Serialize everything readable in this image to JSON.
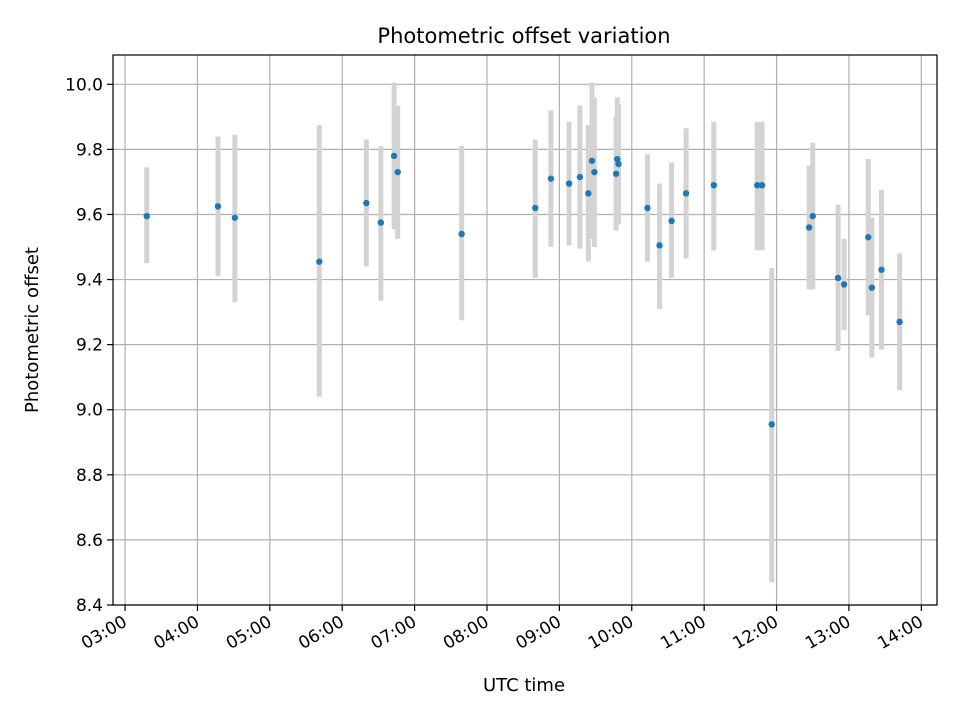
{
  "chart_data": {
    "type": "scatter",
    "title": "Photometric offset variation",
    "xlabel": "UTC time",
    "ylabel": "Photometric offset",
    "x_unit": "hour (UTC)",
    "xlim": [
      "02:50",
      "14:13"
    ],
    "ylim": [
      8.4,
      10.09
    ],
    "xticks": [
      "03:00",
      "04:00",
      "05:00",
      "06:00",
      "07:00",
      "08:00",
      "09:00",
      "10:00",
      "11:00",
      "12:00",
      "13:00",
      "14:00"
    ],
    "yticks": [
      "8.4",
      "8.6",
      "8.8",
      "9.0",
      "9.2",
      "9.4",
      "9.6",
      "9.8",
      "10.0"
    ],
    "grid": true,
    "colors": {
      "points": "#1f77b4",
      "errorbars": "#d3d3d3",
      "grid": "#b0b0b0"
    },
    "points": [
      {
        "time": "03:18",
        "y": 9.595,
        "ylow": 9.45,
        "yhigh": 9.745
      },
      {
        "time": "04:17",
        "y": 9.625,
        "ylow": 9.41,
        "yhigh": 9.84
      },
      {
        "time": "04:31",
        "y": 9.59,
        "ylow": 9.33,
        "yhigh": 9.845
      },
      {
        "time": "05:41",
        "y": 9.455,
        "ylow": 9.04,
        "yhigh": 9.875
      },
      {
        "time": "06:20",
        "y": 9.635,
        "ylow": 9.44,
        "yhigh": 9.83
      },
      {
        "time": "06:32",
        "y": 9.575,
        "ylow": 9.335,
        "yhigh": 9.81
      },
      {
        "time": "06:43",
        "y": 9.78,
        "ylow": 9.555,
        "yhigh": 10.005
      },
      {
        "time": "06:46",
        "y": 9.73,
        "ylow": 9.525,
        "yhigh": 9.935
      },
      {
        "time": "07:39",
        "y": 9.54,
        "ylow": 9.275,
        "yhigh": 9.81
      },
      {
        "time": "08:40",
        "y": 9.62,
        "ylow": 9.405,
        "yhigh": 9.83
      },
      {
        "time": "08:53",
        "y": 9.71,
        "ylow": 9.5,
        "yhigh": 9.92
      },
      {
        "time": "09:08",
        "y": 9.695,
        "ylow": 9.505,
        "yhigh": 9.885
      },
      {
        "time": "09:17",
        "y": 9.715,
        "ylow": 9.495,
        "yhigh": 9.935
      },
      {
        "time": "09:24",
        "y": 9.665,
        "ylow": 9.455,
        "yhigh": 9.875
      },
      {
        "time": "09:27",
        "y": 9.765,
        "ylow": 9.525,
        "yhigh": 10.005
      },
      {
        "time": "09:29",
        "y": 9.73,
        "ylow": 9.5,
        "yhigh": 9.96
      },
      {
        "time": "09:47",
        "y": 9.725,
        "ylow": 9.55,
        "yhigh": 9.9
      },
      {
        "time": "09:48",
        "y": 9.77,
        "ylow": 9.58,
        "yhigh": 9.96
      },
      {
        "time": "09:49",
        "y": 9.755,
        "ylow": 9.57,
        "yhigh": 9.94
      },
      {
        "time": "10:13",
        "y": 9.62,
        "ylow": 9.455,
        "yhigh": 9.785
      },
      {
        "time": "10:23",
        "y": 9.505,
        "ylow": 9.31,
        "yhigh": 9.695
      },
      {
        "time": "10:33",
        "y": 9.58,
        "ylow": 9.405,
        "yhigh": 9.76
      },
      {
        "time": "10:45",
        "y": 9.665,
        "ylow": 9.465,
        "yhigh": 9.865
      },
      {
        "time": "11:08",
        "y": 9.69,
        "ylow": 9.49,
        "yhigh": 9.885
      },
      {
        "time": "11:44",
        "y": 9.69,
        "ylow": 9.49,
        "yhigh": 9.885
      },
      {
        "time": "11:48",
        "y": 9.69,
        "ylow": 9.49,
        "yhigh": 9.885
      },
      {
        "time": "11:56",
        "y": 8.955,
        "ylow": 8.47,
        "yhigh": 9.435
      },
      {
        "time": "12:27",
        "y": 9.56,
        "ylow": 9.37,
        "yhigh": 9.75
      },
      {
        "time": "12:30",
        "y": 9.595,
        "ylow": 9.37,
        "yhigh": 9.82
      },
      {
        "time": "12:51",
        "y": 9.405,
        "ylow": 9.18,
        "yhigh": 9.63
      },
      {
        "time": "12:56",
        "y": 9.385,
        "ylow": 9.245,
        "yhigh": 9.525
      },
      {
        "time": "13:16",
        "y": 9.53,
        "ylow": 9.29,
        "yhigh": 9.77
      },
      {
        "time": "13:19",
        "y": 9.375,
        "ylow": 9.16,
        "yhigh": 9.59
      },
      {
        "time": "13:27",
        "y": 9.43,
        "ylow": 9.185,
        "yhigh": 9.675
      },
      {
        "time": "13:42",
        "y": 9.27,
        "ylow": 9.06,
        "yhigh": 9.48
      }
    ]
  }
}
